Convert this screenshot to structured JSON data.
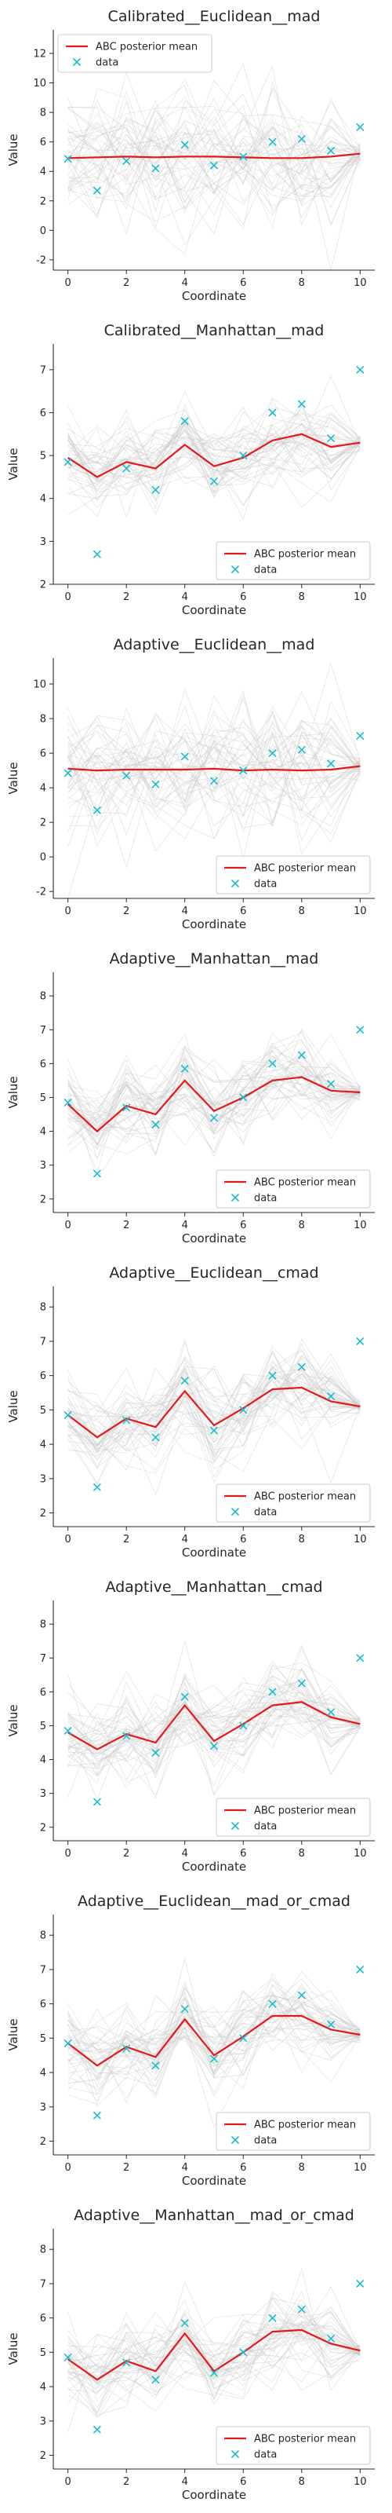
{
  "legend": {
    "posterior_label": "ABC posterior mean",
    "data_label": "data"
  },
  "colors": {
    "posterior_mean": "#e31a1c",
    "data_marker": "#17becf",
    "samples": "#c8c8c8"
  },
  "chart_data": [
    {
      "type": "line",
      "title": "Calibrated__Euclidean__mad",
      "xlabel": "Coordinate",
      "ylabel": "Value",
      "xlim": [
        -0.5,
        10.5
      ],
      "ylim": [
        -2.7,
        13.6
      ],
      "xticks": [
        0,
        2,
        4,
        6,
        8,
        10
      ],
      "yticks": [
        -2,
        0,
        2,
        4,
        6,
        8,
        10,
        12
      ],
      "legend_position": "upper-left",
      "x": [
        0,
        1,
        2,
        3,
        4,
        5,
        6,
        7,
        8,
        9,
        10
      ],
      "series": [
        {
          "name": "ABC posterior mean",
          "values": [
            4.9,
            4.95,
            5.0,
            4.95,
            5.0,
            5.0,
            4.95,
            4.9,
            4.9,
            5.0,
            5.2
          ]
        },
        {
          "name": "data",
          "values": [
            4.85,
            2.7,
            4.7,
            4.2,
            5.8,
            4.4,
            5.0,
            6.0,
            6.2,
            5.4,
            7.0
          ]
        }
      ]
    },
    {
      "type": "line",
      "title": "Calibrated__Manhattan__mad",
      "xlabel": "Coordinate",
      "ylabel": "Value",
      "xlim": [
        -0.5,
        10.5
      ],
      "ylim": [
        2.0,
        7.6
      ],
      "xticks": [
        0,
        2,
        4,
        6,
        8,
        10
      ],
      "yticks": [
        2,
        3,
        4,
        5,
        6,
        7
      ],
      "legend_position": "lower-right",
      "x": [
        0,
        1,
        2,
        3,
        4,
        5,
        6,
        7,
        8,
        9,
        10
      ],
      "series": [
        {
          "name": "ABC posterior mean",
          "values": [
            4.95,
            4.5,
            4.85,
            4.7,
            5.25,
            4.75,
            4.95,
            5.35,
            5.5,
            5.2,
            5.3
          ]
        },
        {
          "name": "data",
          "values": [
            4.85,
            2.7,
            4.7,
            4.2,
            5.8,
            4.4,
            5.0,
            6.0,
            6.2,
            5.4,
            7.0
          ]
        }
      ]
    },
    {
      "type": "line",
      "title": "Adaptive__Euclidean__mad",
      "xlabel": "Coordinate",
      "ylabel": "Value",
      "xlim": [
        -0.5,
        10.5
      ],
      "ylim": [
        -2.4,
        11.5
      ],
      "xticks": [
        0,
        2,
        4,
        6,
        8,
        10
      ],
      "yticks": [
        -2,
        0,
        2,
        4,
        6,
        8,
        10
      ],
      "legend_position": "lower-right",
      "x": [
        0,
        1,
        2,
        3,
        4,
        5,
        6,
        7,
        8,
        9,
        10
      ],
      "series": [
        {
          "name": "ABC posterior mean",
          "values": [
            5.1,
            5.0,
            5.05,
            5.05,
            5.05,
            5.1,
            5.0,
            5.05,
            5.0,
            5.05,
            5.25
          ]
        },
        {
          "name": "data",
          "values": [
            4.85,
            2.7,
            4.7,
            4.2,
            5.8,
            4.4,
            5.0,
            6.0,
            6.2,
            5.4,
            7.0
          ]
        }
      ]
    },
    {
      "type": "line",
      "title": "Adaptive__Manhattan__mad",
      "xlabel": "Coordinate",
      "ylabel": "Value",
      "xlim": [
        -0.5,
        10.5
      ],
      "ylim": [
        1.6,
        8.7
      ],
      "xticks": [
        0,
        2,
        4,
        6,
        8,
        10
      ],
      "yticks": [
        2,
        3,
        4,
        5,
        6,
        7,
        8
      ],
      "legend_position": "lower-right",
      "x": [
        0,
        1,
        2,
        3,
        4,
        5,
        6,
        7,
        8,
        9,
        10
      ],
      "series": [
        {
          "name": "ABC posterior mean",
          "values": [
            4.8,
            4.0,
            4.75,
            4.5,
            5.5,
            4.6,
            5.0,
            5.5,
            5.6,
            5.2,
            5.15
          ]
        },
        {
          "name": "data",
          "values": [
            4.85,
            2.75,
            4.7,
            4.2,
            5.85,
            4.4,
            5.0,
            6.0,
            6.25,
            5.4,
            7.0
          ]
        }
      ]
    },
    {
      "type": "line",
      "title": "Adaptive__Euclidean__cmad",
      "xlabel": "Coordinate",
      "ylabel": "Value",
      "xlim": [
        -0.5,
        10.5
      ],
      "ylim": [
        1.6,
        8.6
      ],
      "xticks": [
        0,
        2,
        4,
        6,
        8,
        10
      ],
      "yticks": [
        2,
        3,
        4,
        5,
        6,
        7,
        8
      ],
      "legend_position": "lower-right",
      "x": [
        0,
        1,
        2,
        3,
        4,
        5,
        6,
        7,
        8,
        9,
        10
      ],
      "series": [
        {
          "name": "ABC posterior mean",
          "values": [
            4.85,
            4.2,
            4.75,
            4.5,
            5.55,
            4.55,
            5.05,
            5.6,
            5.65,
            5.25,
            5.1
          ]
        },
        {
          "name": "data",
          "values": [
            4.85,
            2.75,
            4.7,
            4.2,
            5.85,
            4.4,
            5.0,
            6.0,
            6.25,
            5.4,
            7.0
          ]
        }
      ]
    },
    {
      "type": "line",
      "title": "Adaptive__Manhattan__cmad",
      "xlabel": "Coordinate",
      "ylabel": "Value",
      "xlim": [
        -0.5,
        10.5
      ],
      "ylim": [
        1.6,
        8.7
      ],
      "xticks": [
        0,
        2,
        4,
        6,
        8,
        10
      ],
      "yticks": [
        2,
        3,
        4,
        5,
        6,
        7,
        8
      ],
      "legend_position": "lower-right",
      "x": [
        0,
        1,
        2,
        3,
        4,
        5,
        6,
        7,
        8,
        9,
        10
      ],
      "series": [
        {
          "name": "ABC posterior mean",
          "values": [
            4.8,
            4.3,
            4.75,
            4.5,
            5.6,
            4.55,
            5.05,
            5.6,
            5.7,
            5.25,
            5.05
          ]
        },
        {
          "name": "data",
          "values": [
            4.85,
            2.75,
            4.7,
            4.2,
            5.85,
            4.4,
            5.0,
            6.0,
            6.25,
            5.4,
            7.0
          ]
        }
      ]
    },
    {
      "type": "line",
      "title": "Adaptive__Euclidean__mad_or_cmad",
      "xlabel": "Coordinate",
      "ylabel": "Value",
      "xlim": [
        -0.5,
        10.5
      ],
      "ylim": [
        1.6,
        8.6
      ],
      "xticks": [
        0,
        2,
        4,
        6,
        8,
        10
      ],
      "yticks": [
        2,
        3,
        4,
        5,
        6,
        7,
        8
      ],
      "legend_position": "lower-right",
      "x": [
        0,
        1,
        2,
        3,
        4,
        5,
        6,
        7,
        8,
        9,
        10
      ],
      "series": [
        {
          "name": "ABC posterior mean",
          "values": [
            4.85,
            4.2,
            4.75,
            4.45,
            5.55,
            4.5,
            5.05,
            5.65,
            5.65,
            5.25,
            5.1
          ]
        },
        {
          "name": "data",
          "values": [
            4.85,
            2.75,
            4.7,
            4.2,
            5.85,
            4.4,
            5.0,
            6.0,
            6.25,
            5.4,
            7.0
          ]
        }
      ]
    },
    {
      "type": "line",
      "title": "Adaptive__Manhattan__mad_or_cmad",
      "xlabel": "Coordinate",
      "ylabel": "Value",
      "xlim": [
        -0.5,
        10.5
      ],
      "ylim": [
        1.6,
        8.6
      ],
      "xticks": [
        0,
        2,
        4,
        6,
        8,
        10
      ],
      "yticks": [
        2,
        3,
        4,
        5,
        6,
        7,
        8
      ],
      "legend_position": "lower-right",
      "x": [
        0,
        1,
        2,
        3,
        4,
        5,
        6,
        7,
        8,
        9,
        10
      ],
      "series": [
        {
          "name": "ABC posterior mean",
          "values": [
            4.8,
            4.2,
            4.75,
            4.45,
            5.55,
            4.45,
            5.0,
            5.6,
            5.65,
            5.25,
            5.05
          ]
        },
        {
          "name": "data",
          "values": [
            4.85,
            2.75,
            4.7,
            4.2,
            5.85,
            4.4,
            5.0,
            6.0,
            6.25,
            5.4,
            7.0
          ]
        }
      ]
    }
  ]
}
